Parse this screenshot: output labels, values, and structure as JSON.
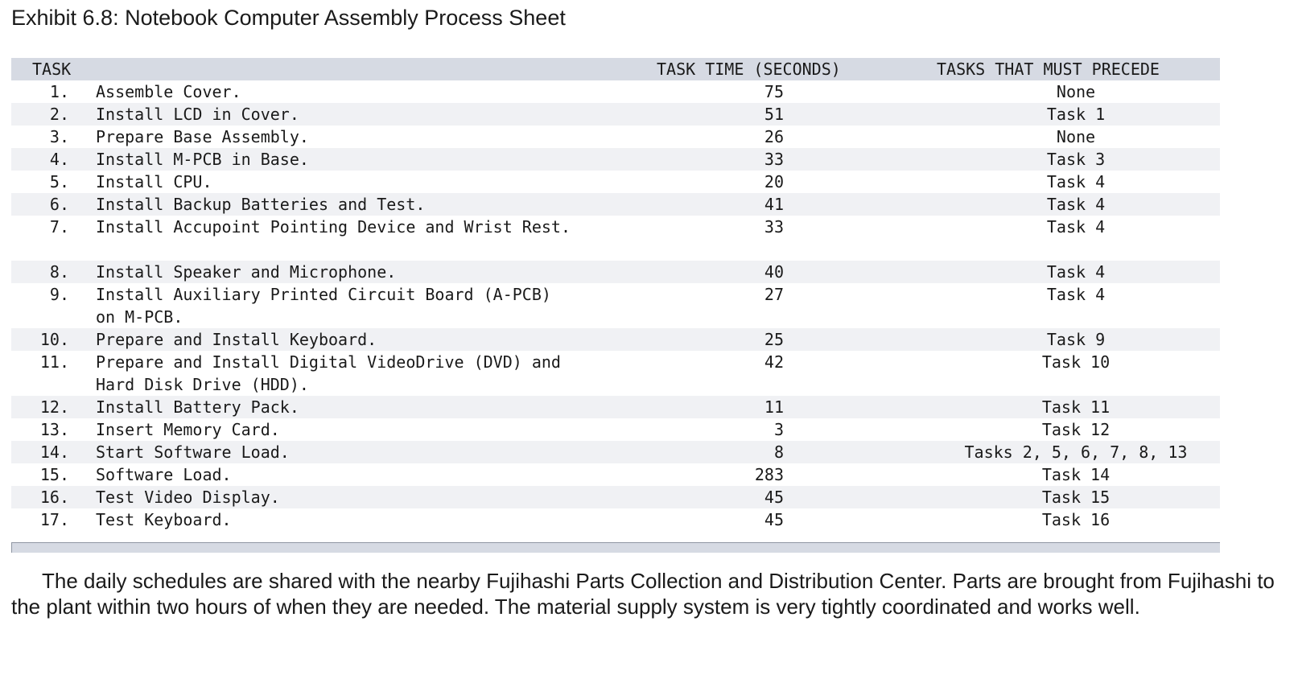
{
  "title": "Exhibit 6.8: Notebook Computer Assembly Process Sheet",
  "table": {
    "headers": {
      "task": "TASK",
      "time": "TASK TIME (SECONDS)",
      "precede": "TASKS THAT MUST PRECEDE"
    },
    "rows": [
      {
        "num": "1.",
        "desc": "Assemble Cover.",
        "time": "75",
        "precede": "None"
      },
      {
        "num": "2.",
        "desc": "Install LCD in Cover.",
        "time": "51",
        "precede": "Task 1"
      },
      {
        "num": "3.",
        "desc": "Prepare Base Assembly.",
        "time": "26",
        "precede": "None"
      },
      {
        "num": "4.",
        "desc": "Install M-PCB in Base.",
        "time": "33",
        "precede": "Task 3"
      },
      {
        "num": "5.",
        "desc": "Install CPU.",
        "time": "20",
        "precede": "Task 4"
      },
      {
        "num": "6.",
        "desc": "Install Backup Batteries and Test.",
        "time": "41",
        "precede": "Task 4"
      },
      {
        "num": "7.",
        "desc": "Install Accupoint Pointing Device and Wrist Rest.",
        "time": "33",
        "precede": "Task 4"
      },
      {
        "num": "8.",
        "desc": "Install Speaker and Microphone.",
        "time": "40",
        "precede": "Task 4"
      },
      {
        "num": "9.",
        "desc": "Install Auxiliary Printed Circuit Board (A-PCB) on M-PCB.",
        "time": "27",
        "precede": "Task 4"
      },
      {
        "num": "10.",
        "desc": "Prepare and Install Keyboard.",
        "time": "25",
        "precede": "Task 9"
      },
      {
        "num": "11.",
        "desc": "Prepare and Install Digital VideoDrive (DVD) and Hard Disk Drive (HDD).",
        "time": "42",
        "precede": "Task 10"
      },
      {
        "num": "12.",
        "desc": "Install Battery Pack.",
        "time": "11",
        "precede": "Task 11"
      },
      {
        "num": "13.",
        "desc": "Insert Memory Card.",
        "time": "3",
        "precede": "Task 12"
      },
      {
        "num": "14.",
        "desc": "Start Software Load.",
        "time": "8",
        "precede": "Tasks 2, 5, 6, 7, 8, 13"
      },
      {
        "num": "15.",
        "desc": "Software Load.",
        "time": "283",
        "precede": "Task 14"
      },
      {
        "num": "16.",
        "desc": "Test Video Display.",
        "time": "45",
        "precede": "Task 15"
      },
      {
        "num": "17.",
        "desc": "Test Keyboard.",
        "time": "45",
        "precede": "Task 16"
      }
    ]
  },
  "paragraph": "The daily schedules are shared with the nearby Fujihashi Parts Collection and Distribution Center. Parts are brought from Fujihashi to the plant within two hours of when they are needed. The material supply system is very tightly coordinated and works well."
}
